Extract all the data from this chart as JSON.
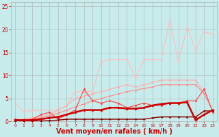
{
  "background_color": "#c8ecec",
  "grid_color": "#b0b0b0",
  "xlabel": "Vent moyen/en rafales ( km/h )",
  "xlim": [
    -0.5,
    23.5
  ],
  "ylim": [
    0,
    26
  ],
  "yticks": [
    0,
    5,
    10,
    15,
    20,
    25
  ],
  "xticks": [
    0,
    1,
    2,
    3,
    4,
    5,
    6,
    7,
    8,
    9,
    10,
    11,
    12,
    13,
    14,
    15,
    16,
    17,
    18,
    19,
    20,
    21,
    22,
    23
  ],
  "lines": [
    {
      "x": [
        0,
        1,
        2,
        3,
        4,
        5,
        6,
        7,
        8,
        9,
        10,
        11,
        12,
        13,
        14,
        15,
        16,
        17,
        18,
        19,
        20,
        21,
        22,
        23
      ],
      "y": [
        4.0,
        2.3,
        2.3,
        2.5,
        2.5,
        2.5,
        3.5,
        6.5,
        6.5,
        6.5,
        13.0,
        13.5,
        13.5,
        13.5,
        9.5,
        13.5,
        13.5,
        13.5,
        22.0,
        13.0,
        20.5,
        15.5,
        19.5,
        19.0
      ],
      "color": "#ffbbbb",
      "lw": 0.8,
      "marker": "o",
      "ms": 2.0,
      "zorder": 2
    },
    {
      "x": [
        0,
        1,
        2,
        3,
        4,
        5,
        6,
        7,
        8,
        9,
        10,
        11,
        12,
        13,
        14,
        15,
        16,
        17,
        18,
        19,
        20,
        21,
        22,
        23
      ],
      "y": [
        0.3,
        0.5,
        0.8,
        1.0,
        1.5,
        2.5,
        3.5,
        5.0,
        5.5,
        6.0,
        6.5,
        7.0,
        7.5,
        8.0,
        7.5,
        8.0,
        8.5,
        9.0,
        9.0,
        9.0,
        9.0,
        9.0,
        6.0,
        2.3
      ],
      "color": "#ffaaaa",
      "lw": 0.8,
      "marker": "o",
      "ms": 2.0,
      "zorder": 2
    },
    {
      "x": [
        0,
        1,
        2,
        3,
        4,
        5,
        6,
        7,
        8,
        9,
        10,
        11,
        12,
        13,
        14,
        15,
        16,
        17,
        18,
        19,
        20,
        21,
        22,
        23
      ],
      "y": [
        0.2,
        0.3,
        0.5,
        0.8,
        1.2,
        1.8,
        2.5,
        3.2,
        3.8,
        4.5,
        5.0,
        5.5,
        6.0,
        6.5,
        6.8,
        7.2,
        7.5,
        8.0,
        8.0,
        8.0,
        8.0,
        8.0,
        6.0,
        2.3
      ],
      "color": "#ff8888",
      "lw": 0.8,
      "marker": "o",
      "ms": 1.8,
      "zorder": 2
    },
    {
      "x": [
        0,
        1,
        2,
        3,
        4,
        5,
        6,
        7,
        8,
        9,
        10,
        11,
        12,
        13,
        14,
        15,
        16,
        17,
        18,
        19,
        20,
        21,
        22,
        23
      ],
      "y": [
        0.5,
        0.3,
        0.5,
        1.5,
        2.0,
        0.5,
        1.5,
        2.5,
        7.0,
        4.5,
        4.0,
        4.5,
        4.0,
        3.0,
        3.5,
        4.0,
        3.5,
        3.5,
        4.0,
        4.0,
        4.5,
        4.5,
        7.0,
        2.0
      ],
      "color": "#ff4444",
      "lw": 0.8,
      "marker": "D",
      "ms": 2.0,
      "zorder": 3
    },
    {
      "x": [
        0,
        1,
        2,
        3,
        4,
        5,
        6,
        7,
        8,
        9,
        10,
        11,
        12,
        13,
        14,
        15,
        16,
        17,
        18,
        19,
        20,
        21,
        22,
        23
      ],
      "y": [
        0.3,
        0.3,
        0.3,
        0.5,
        0.8,
        1.0,
        1.5,
        2.0,
        2.5,
        2.5,
        2.5,
        3.0,
        3.0,
        2.8,
        2.8,
        3.0,
        3.5,
        3.8,
        4.0,
        4.0,
        4.2,
        0.3,
        1.5,
        2.5
      ],
      "color": "#cc0000",
      "lw": 1.8,
      "marker": "D",
      "ms": 2.2,
      "zorder": 4
    },
    {
      "x": [
        0,
        1,
        2,
        3,
        4,
        5,
        6,
        7,
        8,
        9,
        10,
        11,
        12,
        13,
        14,
        15,
        16,
        17,
        18,
        19,
        20,
        21,
        22,
        23
      ],
      "y": [
        0.1,
        0.1,
        0.1,
        0.1,
        0.2,
        0.3,
        0.5,
        0.5,
        0.5,
        0.5,
        0.5,
        0.5,
        0.5,
        0.5,
        0.5,
        0.5,
        0.8,
        1.0,
        1.0,
        1.0,
        1.0,
        1.0,
        2.3,
        2.3
      ],
      "color": "#880000",
      "lw": 1.0,
      "marker": "D",
      "ms": 1.8,
      "zorder": 3
    }
  ],
  "xlabel_color": "#cc0000",
  "tick_color": "#cc0000",
  "axis_label_fontsize": 7,
  "tick_fontsize": 5.5
}
